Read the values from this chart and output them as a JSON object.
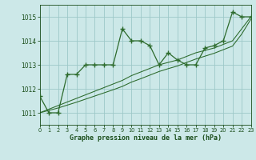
{
  "x": [
    0,
    1,
    2,
    3,
    4,
    5,
    6,
    7,
    8,
    9,
    10,
    11,
    12,
    13,
    14,
    15,
    16,
    17,
    18,
    19,
    20,
    21,
    22,
    23
  ],
  "y_main": [
    1011.7,
    1011.0,
    1011.0,
    1012.6,
    1012.6,
    1013.0,
    1013.0,
    1013.0,
    1013.0,
    1014.5,
    1014.0,
    1014.0,
    1013.8,
    1013.0,
    1013.5,
    1013.2,
    1013.0,
    1013.0,
    1013.7,
    1013.8,
    1014.0,
    1015.2,
    1015.0,
    1015.0
  ],
  "y_trend1": [
    1011.0,
    1011.15,
    1011.3,
    1011.45,
    1011.6,
    1011.75,
    1011.9,
    1012.05,
    1012.2,
    1012.35,
    1012.55,
    1012.7,
    1012.85,
    1013.0,
    1013.1,
    1013.2,
    1013.35,
    1013.5,
    1013.6,
    1013.7,
    1013.85,
    1014.0,
    1014.5,
    1015.0
  ],
  "y_trend2": [
    1011.0,
    1011.1,
    1011.2,
    1011.32,
    1011.44,
    1011.57,
    1011.7,
    1011.83,
    1011.96,
    1012.1,
    1012.28,
    1012.42,
    1012.57,
    1012.72,
    1012.84,
    1012.95,
    1013.1,
    1013.24,
    1013.36,
    1013.48,
    1013.63,
    1013.78,
    1014.28,
    1014.9
  ],
  "ylim": [
    1010.5,
    1015.5
  ],
  "xlim": [
    0,
    23
  ],
  "yticks": [
    1011,
    1012,
    1013,
    1014,
    1015
  ],
  "xticks": [
    0,
    1,
    2,
    3,
    4,
    5,
    6,
    7,
    8,
    9,
    10,
    11,
    12,
    13,
    14,
    15,
    16,
    17,
    18,
    19,
    20,
    21,
    22,
    23
  ],
  "line_color": "#2d6b2d",
  "bg_color": "#cce8e8",
  "grid_color": "#9dc8c8",
  "xlabel": "Graphe pression niveau de la mer (hPa)",
  "tick_color": "#1a4d1a",
  "marker": "+",
  "marker_size": 4,
  "linewidth": 0.9
}
